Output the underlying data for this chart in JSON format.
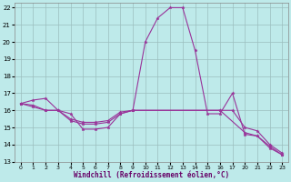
{
  "xlabel": "Windchill (Refroidissement éolien,°C)",
  "bg_color": "#beeaea",
  "grid_color": "#9bbebe",
  "line_color": "#993399",
  "xmin": -0.5,
  "xmax": 23.5,
  "ymin": 13,
  "ymax": 22.3,
  "ytick_vals": [
    13,
    14,
    15,
    16,
    17,
    18,
    19,
    20,
    21,
    22
  ],
  "xtick_positions": [
    0,
    1,
    2,
    3,
    4,
    5,
    6,
    7,
    8,
    9,
    10,
    11,
    12,
    13,
    14,
    15,
    16,
    17,
    20,
    21,
    22,
    23
  ],
  "xtick_labels": [
    "0",
    "1",
    "2",
    "3",
    "4",
    "5",
    "6",
    "7",
    "8",
    "9",
    "10",
    "11",
    "12",
    "13",
    "14",
    "15",
    "16",
    "17",
    "20",
    "21",
    "22",
    "23"
  ],
  "series1": [
    [
      0,
      16.4
    ],
    [
      1,
      16.6
    ],
    [
      2,
      16.7
    ],
    [
      3,
      16.0
    ],
    [
      4,
      15.8
    ],
    [
      5,
      14.9
    ],
    [
      6,
      14.9
    ],
    [
      7,
      15.0
    ],
    [
      8,
      15.8
    ],
    [
      9,
      16.0
    ],
    [
      10,
      20.0
    ],
    [
      11,
      21.4
    ],
    [
      12,
      22.0
    ],
    [
      13,
      22.0
    ],
    [
      14,
      19.5
    ],
    [
      15,
      15.8
    ],
    [
      16,
      15.8
    ],
    [
      17,
      17.0
    ],
    [
      20,
      14.6
    ],
    [
      21,
      14.5
    ],
    [
      22,
      13.8
    ],
    [
      23,
      13.4
    ]
  ],
  "series2": [
    [
      0,
      16.4
    ],
    [
      1,
      16.3
    ],
    [
      2,
      16.0
    ],
    [
      3,
      16.0
    ],
    [
      4,
      15.5
    ],
    [
      5,
      15.3
    ],
    [
      6,
      15.3
    ],
    [
      7,
      15.4
    ],
    [
      8,
      15.9
    ],
    [
      9,
      16.0
    ],
    [
      16,
      16.0
    ],
    [
      17,
      16.0
    ],
    [
      20,
      15.0
    ],
    [
      21,
      14.8
    ],
    [
      22,
      14.0
    ],
    [
      23,
      13.5
    ]
  ],
  "series3": [
    [
      0,
      16.4
    ],
    [
      1,
      16.2
    ],
    [
      2,
      16.0
    ],
    [
      3,
      16.0
    ],
    [
      4,
      15.4
    ],
    [
      5,
      15.2
    ],
    [
      6,
      15.2
    ],
    [
      7,
      15.3
    ],
    [
      8,
      15.8
    ],
    [
      9,
      16.0
    ],
    [
      16,
      16.0
    ],
    [
      20,
      14.7
    ],
    [
      21,
      14.5
    ],
    [
      22,
      13.9
    ],
    [
      23,
      13.4
    ]
  ]
}
